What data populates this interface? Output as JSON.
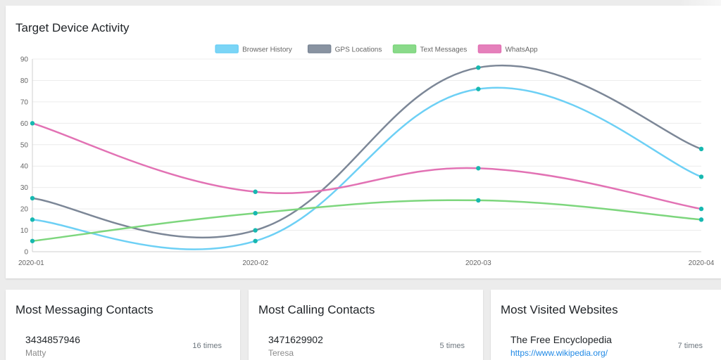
{
  "chart_title": "Target Device Activity",
  "chart_data": {
    "type": "line",
    "title": "Target Device Activity",
    "categories": [
      "2020-01",
      "2020-02",
      "2020-03",
      "2020-04"
    ],
    "ylim": [
      0,
      90
    ],
    "yticks": [
      0,
      10,
      20,
      30,
      40,
      50,
      60,
      70,
      80,
      90
    ],
    "legend_position": "top",
    "grid": true,
    "point_color": "#17b8b0",
    "series": [
      {
        "name": "Browser History",
        "color": "#6dd0f5",
        "values": [
          15,
          5,
          76,
          35
        ]
      },
      {
        "name": "GPS Locations",
        "color": "#7c8797",
        "values": [
          25,
          10,
          86,
          48
        ]
      },
      {
        "name": "Text Messages",
        "color": "#7dd67d",
        "values": [
          5,
          18,
          24,
          15
        ]
      },
      {
        "name": "WhatsApp",
        "color": "#e272b4",
        "values": [
          60,
          28,
          39,
          20
        ]
      }
    ]
  },
  "cards": {
    "messaging": {
      "title": "Most Messaging Contacts",
      "entry": {
        "number": "3434857946",
        "name": "Matty",
        "count": "16 times"
      }
    },
    "calling": {
      "title": "Most Calling Contacts",
      "entry": {
        "number": "3471629902",
        "name": "Teresa",
        "count": "5 times"
      }
    },
    "websites": {
      "title": "Most Visited Websites",
      "entry": {
        "site": "The Free Encyclopedia",
        "url": "https://www.wikipedia.org/",
        "count": "7 times"
      }
    }
  }
}
